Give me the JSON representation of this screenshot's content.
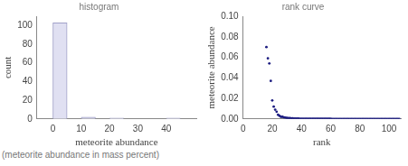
{
  "chart_data": [
    {
      "type": "histogram",
      "title": "histogram",
      "x_label": "meteorite abundance",
      "y_label": "count",
      "bins": [
        0,
        5,
        10,
        15,
        20,
        25,
        30,
        35,
        40,
        45
      ],
      "values": [
        103,
        0,
        2,
        0,
        1,
        0,
        0,
        0,
        1
      ],
      "color": "#e0e0f2",
      "xlim": [
        0,
        45
      ],
      "xticks": [
        0,
        10,
        20,
        30,
        40
      ],
      "ylim": [
        0,
        110
      ],
      "yticks": [
        0,
        20,
        40,
        60,
        80,
        100
      ],
      "grid": false
    },
    {
      "type": "scatter",
      "title": "rank curve",
      "x_label": "rank",
      "y_label": "meteorite abundance",
      "x": [
        16,
        17,
        18,
        19,
        20,
        21,
        22,
        23,
        24,
        25,
        26,
        27,
        28,
        29,
        30,
        31,
        32,
        33,
        34,
        35,
        36,
        37,
        38,
        39,
        40,
        41,
        42,
        43,
        44,
        45,
        46,
        47,
        48,
        49,
        50,
        51,
        52,
        53,
        54,
        55,
        56,
        57,
        58,
        59,
        60,
        61,
        62,
        63,
        64,
        65,
        66,
        67,
        68,
        69,
        70,
        71,
        72,
        73,
        74,
        75,
        76,
        77,
        78,
        79,
        80,
        81,
        82,
        83,
        84,
        85,
        86,
        87,
        88,
        89,
        90,
        91,
        92,
        93,
        94,
        95,
        96,
        97,
        98,
        99,
        100,
        101,
        102,
        103,
        104,
        105,
        106,
        107
      ],
      "values": [
        0.07,
        0.059,
        0.054,
        0.037,
        0.018,
        0.012,
        0.009,
        0.007,
        0.004,
        0.003,
        0.002,
        0.002,
        0.0015,
        0.0012,
        0.001,
        0.0008,
        0.0007,
        0.0006,
        0.0005,
        0.0004,
        0.0004,
        0.0003,
        0.0003,
        0.0002,
        0.0002,
        0.0001,
        0.0001,
        0.0001,
        0.0001,
        0.0001,
        0.0001,
        0.0001,
        0.0001,
        0.0001,
        0.0001,
        0.0001,
        0.0001,
        0.0001,
        0.0001,
        0.0001,
        0.0001,
        0.0001,
        0.0001,
        0.0001,
        0.0001,
        0,
        0,
        0,
        0,
        0,
        0,
        0,
        0,
        0,
        0,
        0,
        0,
        0,
        0,
        0,
        0,
        0,
        0,
        0,
        0,
        0,
        0,
        0,
        0,
        0,
        0,
        0,
        0,
        0,
        0,
        0,
        0,
        0,
        0,
        0,
        0,
        0,
        0,
        0,
        0,
        0,
        0,
        0,
        0,
        0,
        0,
        0
      ],
      "color": "#1c1c80",
      "marker": "circle",
      "xlim": [
        0,
        108
      ],
      "xticks": [
        0,
        20,
        40,
        60,
        80,
        100
      ],
      "ylim": [
        0,
        0.1
      ],
      "yticks": [
        {
          "value": 0,
          "label": "0.00"
        },
        {
          "value": 0.02,
          "label": "0.02"
        },
        {
          "value": 0.04,
          "label": "0.04"
        },
        {
          "value": 0.06,
          "label": "0.06"
        },
        {
          "value": 0.08,
          "label": "0.08"
        },
        {
          "value": 0.1,
          "label": "0.10"
        }
      ],
      "grid": false
    }
  ],
  "caption": "(meteorite abundance in mass percent)"
}
